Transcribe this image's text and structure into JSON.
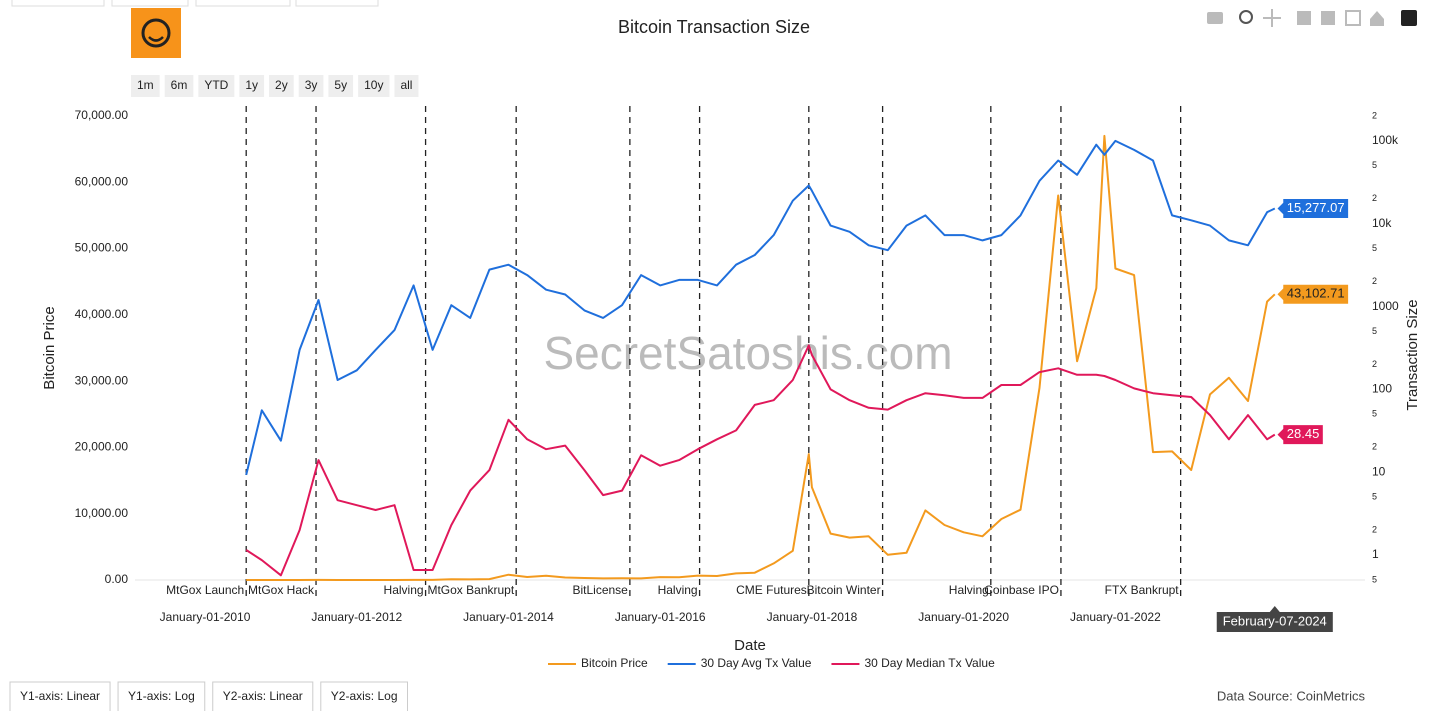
{
  "chart_data": {
    "type": "line",
    "title": "Bitcoin Transaction Size",
    "x_label": "Date",
    "y_label": "Bitcoin Price",
    "y2_label": "Transaction Size",
    "xlim": [
      "2009-01-29",
      "2025-04-17"
    ],
    "xticks": [
      {
        "value": "2010-01-01",
        "label": "January-01-2010"
      },
      {
        "value": "2012-01-01",
        "label": "January-01-2012"
      },
      {
        "value": "2014-01-01",
        "label": "January-01-2014"
      },
      {
        "value": "2016-01-01",
        "label": "January-01-2016"
      },
      {
        "value": "2018-01-01",
        "label": "January-01-2018"
      },
      {
        "value": "2020-01-01",
        "label": "January-01-2020"
      },
      {
        "value": "2022-01-01",
        "label": "January-01-2022"
      }
    ],
    "ylim": [
      0,
      70000
    ],
    "yticks": [
      {
        "value": 0,
        "label": "0.00"
      },
      {
        "value": 10000,
        "label": "10,000.00"
      },
      {
        "value": 20000,
        "label": "20,000.00"
      },
      {
        "value": 30000,
        "label": "30,000.00"
      },
      {
        "value": 40000,
        "label": "40,000.00"
      },
      {
        "value": 50000,
        "label": "50,000.00"
      },
      {
        "value": 60000,
        "label": "60,000.00"
      },
      {
        "value": 70000,
        "label": "70,000.00"
      }
    ],
    "y2log": true,
    "y2lim": [
      0.5,
      200000
    ],
    "y2ticks": [
      {
        "value": 0.5,
        "label": "5"
      },
      1,
      2,
      5,
      10,
      {
        "value": 20,
        "label": "2"
      },
      {
        "value": 50,
        "label": "5"
      },
      100,
      {
        "value": 200,
        "label": "2"
      },
      {
        "value": 500,
        "label": "5"
      },
      1000,
      {
        "value": 2000,
        "label": "2"
      },
      {
        "value": 5000,
        "label": "5"
      },
      {
        "value": 10000,
        "label": "10k"
      },
      {
        "value": 20000,
        "label": "2"
      },
      {
        "value": 50000,
        "label": "5"
      },
      {
        "value": 100000,
        "label": "100k"
      },
      {
        "value": 200000,
        "label": "2"
      }
    ],
    "grid": false,
    "x": [
      "2010-07-18",
      "2010-10-01",
      "2011-01-01",
      "2011-04-01",
      "2011-07-01",
      "2011-10-01",
      "2012-01-01",
      "2012-04-01",
      "2012-07-01",
      "2012-10-01",
      "2013-01-01",
      "2013-04-01",
      "2013-07-01",
      "2013-10-01",
      "2014-01-01",
      "2014-04-01",
      "2014-07-01",
      "2014-10-01",
      "2015-01-01",
      "2015-04-01",
      "2015-07-01",
      "2015-10-01",
      "2016-01-01",
      "2016-04-01",
      "2016-07-01",
      "2016-10-01",
      "2017-01-01",
      "2017-04-01",
      "2017-07-01",
      "2017-10-01",
      "2017-12-17",
      "2018-01-01",
      "2018-04-01",
      "2018-07-01",
      "2018-10-01",
      "2019-01-01",
      "2019-04-01",
      "2019-07-01",
      "2019-10-01",
      "2020-01-01",
      "2020-04-01",
      "2020-07-01",
      "2020-10-01",
      "2021-01-01",
      "2021-04-01",
      "2021-07-01",
      "2021-10-01",
      "2021-11-09",
      "2022-01-01",
      "2022-04-01",
      "2022-07-01",
      "2022-10-01",
      "2023-01-01",
      "2023-04-01",
      "2023-07-01",
      "2023-10-01",
      "2024-01-01",
      "2024-02-07"
    ],
    "series": [
      {
        "name": "Bitcoin Price",
        "color": "#f39a1e",
        "axis": "y",
        "end_label": "43,102.71",
        "values": [
          0.07,
          0.1,
          0.3,
          0.8,
          15,
          5,
          5,
          5,
          7,
          12,
          13,
          100,
          90,
          130,
          800,
          450,
          630,
          380,
          300,
          240,
          260,
          240,
          430,
          420,
          670,
          610,
          1000,
          1100,
          2500,
          4400,
          19000,
          14000,
          7000,
          6400,
          6600,
          3800,
          4100,
          10500,
          8300,
          7200,
          6600,
          9200,
          10600,
          29000,
          58000,
          33000,
          44000,
          67000,
          47000,
          46000,
          19300,
          19400,
          16600,
          28000,
          30500,
          27000,
          42000,
          43102.71
        ]
      },
      {
        "name": "30 Day Avg Tx Value",
        "color": "#1f6fdc",
        "axis": "y2",
        "end_label": "15,277.07",
        "values": [
          9.3,
          56,
          24,
          300,
          1200,
          130,
          170,
          300,
          520,
          1800,
          300,
          1040,
          730,
          2800,
          3200,
          2400,
          1600,
          1400,
          900,
          730,
          1040,
          2400,
          1800,
          2100,
          2100,
          1800,
          3200,
          4200,
          7300,
          19000,
          29000,
          25000,
          9500,
          8000,
          5500,
          4800,
          9500,
          12600,
          7300,
          7300,
          6300,
          7300,
          12600,
          33000,
          58000,
          39000,
          90000,
          68000,
          100000,
          78000,
          58000,
          12600,
          11000,
          9500,
          6300,
          5500,
          13800,
          15277.07
        ]
      },
      {
        "name": "30 Day Median Tx Value",
        "color": "#e0185a",
        "axis": "y2",
        "end_label": "28.45",
        "values": [
          1.15,
          0.87,
          0.57,
          2,
          14,
          4.6,
          4,
          3.5,
          4,
          0.66,
          0.66,
          2.3,
          6,
          10.6,
          43,
          25,
          19,
          21,
          10.6,
          5.3,
          6,
          16,
          12,
          14,
          19,
          25,
          32,
          65,
          74,
          130,
          340,
          260,
          100,
          74,
          60,
          57,
          74,
          90,
          85,
          79,
          79,
          113,
          113,
          162,
          180,
          150,
          150,
          145,
          130,
          103,
          90,
          85,
          81,
          49,
          25,
          49,
          25,
          28.45
        ]
      }
    ],
    "events": [
      {
        "date": "2010-07-18",
        "label": "MtGox Launch"
      },
      {
        "date": "2011-06-19",
        "label": "MtGox Hack"
      },
      {
        "date": "2012-11-28",
        "label": "Halving"
      },
      {
        "date": "2014-02-07",
        "label": "MtGox Bankrupt"
      },
      {
        "date": "2015-08-08",
        "label": "BitLicense"
      },
      {
        "date": "2016-07-09",
        "label": "Halving"
      },
      {
        "date": "2017-12-17",
        "label": "CME Futures"
      },
      {
        "date": "2018-12-07",
        "label": "Bitcoin Winter"
      },
      {
        "date": "2020-05-11",
        "label": "Halving"
      },
      {
        "date": "2021-04-14",
        "label": "Coinbase IPO"
      },
      {
        "date": "2022-11-11",
        "label": "FTX Bankrupt"
      }
    ],
    "hover_x": {
      "value": "2024-02-07",
      "label": "February-07-2024"
    }
  },
  "controls": {
    "range_buttons": [
      "1m",
      "6m",
      "YTD",
      "1y",
      "2y",
      "3y",
      "5y",
      "10y",
      "all"
    ],
    "axis_tabs": [
      "Y1-axis: Linear",
      "Y1-axis: Log",
      "Y2-axis: Linear",
      "Y2-axis: Log"
    ]
  },
  "watermark": "SecretSatoshis.com",
  "source": "Data Source: CoinMetrics"
}
